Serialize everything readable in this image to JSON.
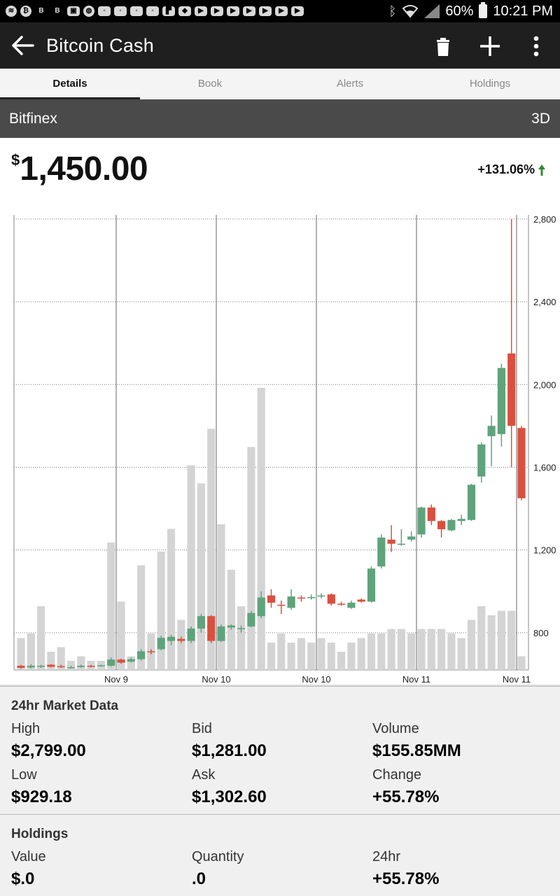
{
  "status_bar": {
    "battery": "60%",
    "time": "10:21 PM",
    "notification_icons": [
      "spotify-icon",
      "bitcoin-circle-icon",
      "b-icon",
      "b-icon",
      "image-icon",
      "basketball-icon",
      "gamepad-icon",
      "gamepad-icon",
      "gamepad-icon",
      "gamepad-icon",
      "flipboard-icon",
      "ticket-icon",
      "youtube-icon",
      "youtube-icon",
      "youtube-icon",
      "youtube-icon",
      "youtube-icon",
      "youtube-icon",
      "youtube-icon"
    ],
    "icon_b_label": "B"
  },
  "app_bar": {
    "title": "Bitcoin Cash"
  },
  "tabs": [
    {
      "label": "Details",
      "active": true
    },
    {
      "label": "Book",
      "active": false
    },
    {
      "label": "Alerts",
      "active": false
    },
    {
      "label": "Holdings",
      "active": false
    }
  ],
  "exchange": {
    "name": "Bitfinex",
    "range": "3D"
  },
  "price": {
    "currency": "$",
    "amount": "1,450.00",
    "change": "+131.06%"
  },
  "colors": {
    "up": "#5fa37c",
    "down": "#d9503f",
    "volume": "#d4d4d4",
    "change_arrow": "#2e8b2e"
  },
  "chart_data": {
    "type": "candlestick",
    "x_tick_labels": [
      "Nov 9",
      "Nov 10",
      "Nov 10",
      "Nov 11",
      "Nov 11"
    ],
    "y_tick_labels": [
      "800",
      "1,200",
      "1,600",
      "2,000",
      "2,400",
      "2,800"
    ],
    "y_ticks": [
      800,
      1200,
      1600,
      2000,
      2400,
      2800
    ],
    "ylim": [
      620,
      2820
    ],
    "grid": true,
    "candles": [
      {
        "o": 640,
        "c": 630,
        "h": 645,
        "l": 625,
        "v": 0.07
      },
      {
        "o": 632,
        "c": 640,
        "h": 648,
        "l": 628,
        "v": 0.08
      },
      {
        "o": 635,
        "c": 640,
        "h": 645,
        "l": 630,
        "v": 0.14
      },
      {
        "o": 645,
        "c": 635,
        "h": 648,
        "l": 632,
        "v": 0.04
      },
      {
        "o": 638,
        "c": 636,
        "h": 645,
        "l": 630,
        "v": 0.05
      },
      {
        "o": 630,
        "c": 633,
        "h": 640,
        "l": 626,
        "v": 0.02
      },
      {
        "o": 634,
        "c": 640,
        "h": 646,
        "l": 630,
        "v": 0.03
      },
      {
        "o": 640,
        "c": 636,
        "h": 645,
        "l": 632,
        "v": 0.02
      },
      {
        "o": 640,
        "c": 642,
        "h": 645,
        "l": 636,
        "v": 0.02
      },
      {
        "o": 640,
        "c": 670,
        "h": 680,
        "l": 635,
        "v": 0.28
      },
      {
        "o": 670,
        "c": 655,
        "h": 675,
        "l": 650,
        "v": 0.15
      },
      {
        "o": 660,
        "c": 672,
        "h": 680,
        "l": 655,
        "v": 0.03
      },
      {
        "o": 672,
        "c": 710,
        "h": 720,
        "l": 665,
        "v": 0.23
      },
      {
        "o": 710,
        "c": 705,
        "h": 720,
        "l": 695,
        "v": 0.08
      },
      {
        "o": 720,
        "c": 775,
        "h": 785,
        "l": 715,
        "v": 0.26
      },
      {
        "o": 760,
        "c": 780,
        "h": 790,
        "l": 740,
        "v": 0.31
      },
      {
        "o": 770,
        "c": 760,
        "h": 780,
        "l": 750,
        "v": 0.11
      },
      {
        "o": 760,
        "c": 820,
        "h": 830,
        "l": 750,
        "v": 0.45
      },
      {
        "o": 820,
        "c": 880,
        "h": 890,
        "l": 800,
        "v": 0.41
      },
      {
        "o": 880,
        "c": 760,
        "h": 885,
        "l": 750,
        "v": 0.53
      },
      {
        "o": 760,
        "c": 830,
        "h": 840,
        "l": 755,
        "v": 0.32
      },
      {
        "o": 825,
        "c": 835,
        "h": 840,
        "l": 815,
        "v": 0.22
      },
      {
        "o": 820,
        "c": 822,
        "h": 835,
        "l": 800,
        "v": 0.14
      },
      {
        "o": 830,
        "c": 895,
        "h": 905,
        "l": 825,
        "v": 0.49
      },
      {
        "o": 880,
        "c": 970,
        "h": 1000,
        "l": 870,
        "v": 0.62
      },
      {
        "o": 980,
        "c": 945,
        "h": 1010,
        "l": 920,
        "v": 0.06
      },
      {
        "o": 935,
        "c": 930,
        "h": 955,
        "l": 890,
        "v": 0.08
      },
      {
        "o": 920,
        "c": 975,
        "h": 1010,
        "l": 910,
        "v": 0.06
      },
      {
        "o": 970,
        "c": 968,
        "h": 980,
        "l": 950,
        "v": 0.07
      },
      {
        "o": 970,
        "c": 972,
        "h": 985,
        "l": 960,
        "v": 0.06
      },
      {
        "o": 975,
        "c": 980,
        "h": 990,
        "l": 965,
        "v": 0.07
      },
      {
        "o": 985,
        "c": 940,
        "h": 990,
        "l": 930,
        "v": 0.06
      },
      {
        "o": 940,
        "c": 938,
        "h": 950,
        "l": 930,
        "v": 0.04
      },
      {
        "o": 920,
        "c": 945,
        "h": 955,
        "l": 915,
        "v": 0.06
      },
      {
        "o": 960,
        "c": 950,
        "h": 965,
        "l": 945,
        "v": 0.07
      },
      {
        "o": 950,
        "c": 1110,
        "h": 1120,
        "l": 945,
        "v": 0.08
      },
      {
        "o": 1120,
        "c": 1260,
        "h": 1275,
        "l": 1110,
        "v": 0.08
      },
      {
        "o": 1250,
        "c": 1230,
        "h": 1320,
        "l": 1190,
        "v": 0.09
      },
      {
        "o": 1225,
        "c": 1230,
        "h": 1300,
        "l": 1220,
        "v": 0.09
      },
      {
        "o": 1250,
        "c": 1265,
        "h": 1290,
        "l": 1240,
        "v": 0.08
      },
      {
        "o": 1275,
        "c": 1405,
        "h": 1410,
        "l": 1260,
        "v": 0.09
      },
      {
        "o": 1405,
        "c": 1340,
        "h": 1420,
        "l": 1320,
        "v": 0.09
      },
      {
        "o": 1340,
        "c": 1300,
        "h": 1345,
        "l": 1260,
        "v": 0.09
      },
      {
        "o": 1295,
        "c": 1345,
        "h": 1350,
        "l": 1290,
        "v": 0.08
      },
      {
        "o": 1340,
        "c": 1350,
        "h": 1370,
        "l": 1320,
        "v": 0.07
      },
      {
        "o": 1345,
        "c": 1515,
        "h": 1520,
        "l": 1340,
        "v": 0.11
      },
      {
        "o": 1555,
        "c": 1710,
        "h": 1720,
        "l": 1525,
        "v": 0.14
      },
      {
        "o": 1750,
        "c": 1800,
        "h": 1850,
        "l": 1605,
        "v": 0.12
      },
      {
        "o": 1760,
        "c": 2080,
        "h": 2100,
        "l": 1700,
        "v": 0.13
      },
      {
        "o": 2150,
        "c": 1800,
        "h": 2799,
        "l": 1600,
        "v": 0.13
      },
      {
        "o": 1790,
        "c": 1450,
        "h": 1800,
        "l": 1440,
        "v": 0.03
      }
    ]
  },
  "market_data": {
    "title": "24hr Market Data",
    "items": [
      {
        "label": "High",
        "value": "$2,799.00"
      },
      {
        "label": "Bid",
        "value": "$1,281.00"
      },
      {
        "label": "Volume",
        "value": "$155.85MM"
      },
      {
        "label": "Low",
        "value": "$929.18"
      },
      {
        "label": "Ask",
        "value": "$1,302.60"
      },
      {
        "label": "Change",
        "value": "+55.78%"
      }
    ]
  },
  "holdings": {
    "title": "Holdings",
    "items": [
      {
        "label": "Value",
        "value": "$.0"
      },
      {
        "label": "Quantity",
        "value": ".0"
      },
      {
        "label": "24hr",
        "value": "+55.78%"
      }
    ]
  }
}
